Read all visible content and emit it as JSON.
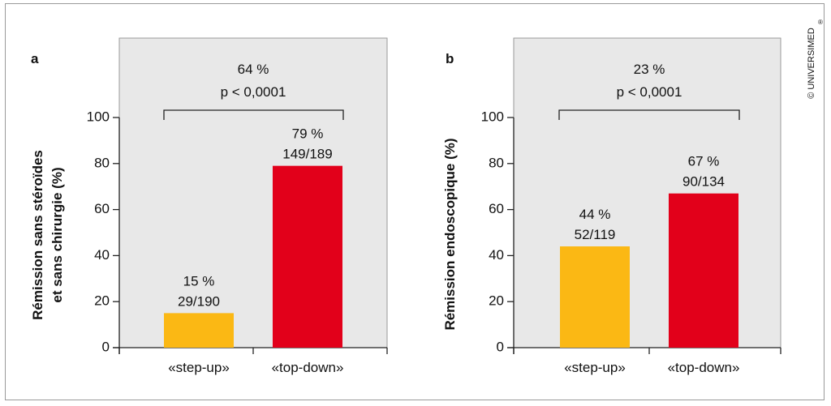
{
  "copyright": "© UNIVERSIMED",
  "copyright_mark": "®",
  "chart_data": [
    {
      "type": "bar",
      "panel": "a",
      "ylabel_lines": [
        "Rémission sans stéroïdes",
        "et sans chirurgie (%)"
      ],
      "categories": [
        "«step-up»",
        "«top-down»"
      ],
      "values": [
        15,
        79
      ],
      "labels_pct": [
        "15 %",
        "79 %"
      ],
      "labels_frac": [
        "29/190",
        "149/189"
      ],
      "yticks": [
        "0",
        "20",
        "40",
        "60",
        "80",
        "100"
      ],
      "ylim": [
        0,
        100
      ],
      "bracket_diff": "64 %",
      "bracket_p": "p < 0,0001",
      "colors": [
        "#fbb814",
        "#e2001a"
      ]
    },
    {
      "type": "bar",
      "panel": "b",
      "ylabel_lines": [
        "Rémission endoscopique (%)"
      ],
      "categories": [
        "«step-up»",
        "«top-down»"
      ],
      "values": [
        44,
        67
      ],
      "labels_pct": [
        "44 %",
        "67 %"
      ],
      "labels_frac": [
        "52/119",
        "90/134"
      ],
      "yticks": [
        "0",
        "20",
        "40",
        "60",
        "80",
        "100"
      ],
      "ylim": [
        0,
        100
      ],
      "bracket_diff": "23 %",
      "bracket_p": "p < 0,0001",
      "colors": [
        "#fbb814",
        "#e2001a"
      ]
    }
  ]
}
